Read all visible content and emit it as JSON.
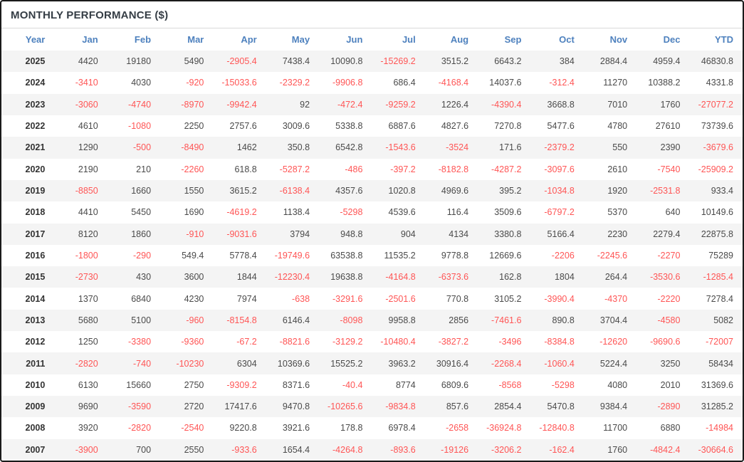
{
  "panel": {
    "title": "MONTHLY PERFORMANCE ($)"
  },
  "colors": {
    "header_text": "#4e81be",
    "positive_value": "#4a4a4a",
    "negative_value": "#ff5555",
    "row_stripe": "#f4f4f4",
    "panel_border": "#1a1a1a",
    "title_text": "#353d45"
  },
  "chart_data": {
    "type": "table",
    "title": "MONTHLY PERFORMANCE ($)",
    "columns": [
      "Year",
      "Jan",
      "Feb",
      "Mar",
      "Apr",
      "May",
      "Jun",
      "Jul",
      "Aug",
      "Sep",
      "Oct",
      "Nov",
      "Dec",
      "YTD"
    ],
    "rows": [
      {
        "year": "2025",
        "values": [
          4420,
          19180,
          5490,
          -2905.4,
          7438.4,
          10090.8,
          -15269.2,
          3515.2,
          6643.2,
          384,
          2884.4,
          4959.4,
          46830.8
        ]
      },
      {
        "year": "2024",
        "values": [
          -3410,
          4030,
          -920,
          -15033.6,
          -2329.2,
          -9906.8,
          686.4,
          -4168.4,
          14037.6,
          -312.4,
          11270,
          10388.2,
          4331.8
        ]
      },
      {
        "year": "2023",
        "values": [
          -3060,
          -4740,
          -8970,
          -9942.4,
          92,
          -472.4,
          -9259.2,
          1226.4,
          -4390.4,
          3668.8,
          7010,
          1760,
          -27077.2
        ]
      },
      {
        "year": "2022",
        "values": [
          4610,
          -1080,
          2250,
          2757.6,
          3009.6,
          5338.8,
          6887.6,
          4827.6,
          7270.8,
          5477.6,
          4780,
          27610,
          73739.6
        ]
      },
      {
        "year": "2021",
        "values": [
          1290,
          -500,
          -8490,
          1462,
          350.8,
          6542.8,
          -1543.6,
          -3524,
          171.6,
          -2379.2,
          550,
          2390,
          -3679.6
        ]
      },
      {
        "year": "2020",
        "values": [
          2190,
          210,
          -2260,
          618.8,
          -5287.2,
          -486,
          -397.2,
          -8182.8,
          -4287.2,
          -3097.6,
          2610,
          -7540,
          -25909.2
        ]
      },
      {
        "year": "2019",
        "values": [
          -8850,
          1660,
          1550,
          3615.2,
          -6138.4,
          4357.6,
          1020.8,
          4969.6,
          395.2,
          -1034.8,
          1920,
          -2531.8,
          933.4
        ]
      },
      {
        "year": "2018",
        "values": [
          4410,
          5450,
          1690,
          -4619.2,
          1138.4,
          -5298,
          4539.6,
          116.4,
          3509.6,
          -6797.2,
          5370,
          640,
          10149.6
        ]
      },
      {
        "year": "2017",
        "values": [
          8120,
          1860,
          -910,
          -9031.6,
          3794,
          948.8,
          904,
          4134,
          3380.8,
          5166.4,
          2230,
          2279.4,
          22875.8
        ]
      },
      {
        "year": "2016",
        "values": [
          -1800,
          -290,
          549.4,
          5778.4,
          -19749.6,
          63538.8,
          11535.2,
          9778.8,
          12669.6,
          -2206,
          -2245.6,
          -2270,
          75289
        ]
      },
      {
        "year": "2015",
        "values": [
          -2730,
          430,
          3600,
          1844,
          -12230.4,
          19638.8,
          -4164.8,
          -6373.6,
          162.8,
          1804,
          264.4,
          -3530.6,
          -1285.4
        ]
      },
      {
        "year": "2014",
        "values": [
          1370,
          6840,
          4230,
          7974,
          -638,
          -3291.6,
          -2501.6,
          770.8,
          3105.2,
          -3990.4,
          -4370,
          -2220,
          7278.4
        ]
      },
      {
        "year": "2013",
        "values": [
          5680,
          5100,
          -960,
          -8154.8,
          6146.4,
          -8098,
          9958.8,
          2856,
          -7461.6,
          890.8,
          3704.4,
          -4580,
          5082
        ]
      },
      {
        "year": "2012",
        "values": [
          1250,
          -3380,
          -9360,
          -67.2,
          -8821.6,
          -3129.2,
          -10480.4,
          -3827.2,
          -3496,
          -8384.8,
          -12620,
          -9690.6,
          -72007
        ]
      },
      {
        "year": "2011",
        "values": [
          -2820,
          -740,
          -10230,
          6304,
          10369.6,
          15525.2,
          3963.2,
          30916.4,
          -2268.4,
          -1060.4,
          5224.4,
          3250,
          58434
        ]
      },
      {
        "year": "2010",
        "values": [
          6130,
          15660,
          2750,
          -9309.2,
          8371.6,
          -40.4,
          8774,
          6809.6,
          -8568,
          -5298,
          4080,
          2010,
          31369.6
        ]
      },
      {
        "year": "2009",
        "values": [
          9690,
          -3590,
          2720,
          17417.6,
          9470.8,
          -10265.6,
          -9834.8,
          857.6,
          2854.4,
          5470.8,
          9384.4,
          -2890,
          31285.2
        ]
      },
      {
        "year": "2008",
        "values": [
          3920,
          -2820,
          -2540,
          9220.8,
          3921.6,
          178.8,
          6978.4,
          -2658,
          -36924.8,
          -12840.8,
          11700,
          6880,
          -14984
        ]
      },
      {
        "year": "2007",
        "values": [
          -3900,
          700,
          2550,
          -933.6,
          1654.4,
          -4264.8,
          -893.6,
          -19126,
          -3206.2,
          -162.4,
          1760,
          -4842.4,
          -30664.6
        ]
      }
    ]
  }
}
